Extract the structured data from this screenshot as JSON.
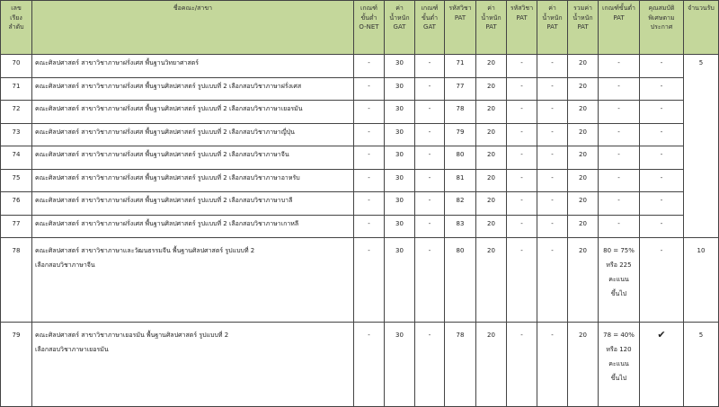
{
  "headers": [
    "เลขเรียงลำดับ",
    "ชื่อคณะ/สาขา",
    "เกณฑ์ขั้นต่ำ O-NET",
    "ค่าน้ำหนัก GAT",
    "เกณฑ์ขั้นต่ำ GAT",
    "รหัสวิชา PAT",
    "ค่าน้ำหนัก PAT",
    "รหัสวิชา PAT",
    "ค่าน้ำหนัก PAT",
    "รวมค่าน้ำหนัก PAT",
    "เกณฑ์ขั้นต่ำ PAT",
    "คุณสมบัติพิเศษตามประกาศ",
    "จำนวนรับ"
  ],
  "header_lines": [
    [
      "เลข",
      "เรียง",
      "ลำดับ"
    ],
    [
      "ชื่อคณะ/สาขา"
    ],
    [
      "เกณฑ์",
      "ขั้นต่ำ",
      "O-NET"
    ],
    [
      "ค่า",
      "น้ำหนัก",
      "GAT"
    ],
    [
      "เกณฑ์",
      "ขั้นต่ำ",
      "GAT"
    ],
    [
      "รหัสวิชา",
      "PAT"
    ],
    [
      "ค่า",
      "น้ำหนัก",
      "PAT"
    ],
    [
      "รหัสวิชา",
      "PAT"
    ],
    [
      "ค่า",
      "น้ำหนัก",
      "PAT"
    ],
    [
      "รวมค่า",
      "น้ำหนัก",
      "PAT"
    ],
    [
      "เกณฑ์ขั้นต่ำ",
      "PAT"
    ],
    [
      "คุณสมบัติ",
      "พิเศษตาม",
      "ประกาศ"
    ],
    [
      "จำนวนรับ"
    ]
  ],
  "header_color": "#c4d79b",
  "rows": [
    {
      "no": "70",
      "name": [
        "คณะศิลปศาสตร์ สาขาวิชาภาษาฝรั่งเศส พื้นฐานวิทยาศาสตร์"
      ],
      "onet": "-",
      "gat_w": "30",
      "gat_min": "-",
      "pat_code": "71",
      "pat_w": "20",
      "pat_code2": "-",
      "pat_w2": "-",
      "total": "20",
      "pat_min": [
        "-"
      ],
      "special": "-",
      "quota": "5"
    },
    {
      "no": "71",
      "name": [
        "คณะศิลปศาสตร์ สาขาวิชาภาษาฝรั่งเศส พื้นฐานศิลปศาสตร์ รูปแบบที่ 2 เลือกสอบวิชาภาษาฝรั่งเศส"
      ],
      "onet": "-",
      "gat_w": "30",
      "gat_min": "-",
      "pat_code": "77",
      "pat_w": "20",
      "pat_code2": "-",
      "pat_w2": "-",
      "total": "20",
      "pat_min": [
        "-"
      ],
      "special": "-"
    },
    {
      "no": "72",
      "name": [
        "คณะศิลปศาสตร์ สาขาวิชาภาษาฝรั่งเศส พื้นฐานศิลปศาสตร์ รูปแบบที่ 2 เลือกสอบวิชาภาษาเยอรมัน"
      ],
      "onet": "-",
      "gat_w": "30",
      "gat_min": "-",
      "pat_code": "78",
      "pat_w": "20",
      "pat_code2": "-",
      "pat_w2": "-",
      "total": "20",
      "pat_min": [
        "-"
      ],
      "special": "-"
    },
    {
      "no": "73",
      "name": [
        "คณะศิลปศาสตร์ สาขาวิชาภาษาฝรั่งเศส พื้นฐานศิลปศาสตร์ รูปแบบที่ 2 เลือกสอบวิชาภาษาญี่ปุ่น"
      ],
      "onet": "-",
      "gat_w": "30",
      "gat_min": "-",
      "pat_code": "79",
      "pat_w": "20",
      "pat_code2": "-",
      "pat_w2": "-",
      "total": "20",
      "pat_min": [
        "-"
      ],
      "special": "-"
    },
    {
      "no": "74",
      "name": [
        "คณะศิลปศาสตร์ สาขาวิชาภาษาฝรั่งเศส พื้นฐานศิลปศาสตร์ รูปแบบที่ 2 เลือกสอบวิชาภาษาจีน"
      ],
      "onet": "-",
      "gat_w": "30",
      "gat_min": "-",
      "pat_code": "80",
      "pat_w": "20",
      "pat_code2": "-",
      "pat_w2": "-",
      "total": "20",
      "pat_min": [
        "-"
      ],
      "special": "-"
    },
    {
      "no": "75",
      "name": [
        "คณะศิลปศาสตร์ สาขาวิชาภาษาฝรั่งเศส พื้นฐานศิลปศาสตร์ รูปแบบที่ 2 เลือกสอบวิชาภาษาอาหรับ"
      ],
      "onet": "-",
      "gat_w": "30",
      "gat_min": "-",
      "pat_code": "81",
      "pat_w": "20",
      "pat_code2": "-",
      "pat_w2": "-",
      "total": "20",
      "pat_min": [
        "-"
      ],
      "special": "-"
    },
    {
      "no": "76",
      "name": [
        "คณะศิลปศาสตร์ สาขาวิชาภาษาฝรั่งเศส พื้นฐานศิลปศาสตร์ รูปแบบที่ 2 เลือกสอบวิชาภาษาบาลี"
      ],
      "onet": "-",
      "gat_w": "30",
      "gat_min": "-",
      "pat_code": "82",
      "pat_w": "20",
      "pat_code2": "-",
      "pat_w2": "-",
      "total": "20",
      "pat_min": [
        "-"
      ],
      "special": "-"
    },
    {
      "no": "77",
      "name": [
        "คณะศิลปศาสตร์ สาขาวิชาภาษาฝรั่งเศส พื้นฐานศิลปศาสตร์ รูปแบบที่ 2 เลือกสอบวิชาภาษาเกาหลี"
      ],
      "onet": "-",
      "gat_w": "30",
      "gat_min": "-",
      "pat_code": "83",
      "pat_w": "20",
      "pat_code2": "-",
      "pat_w2": "-",
      "total": "20",
      "pat_min": [
        "-"
      ],
      "special": "-"
    },
    {
      "no": "78",
      "name": [
        "คณะศิลปศาสตร์ สาขาวิชาภาษาและวัฒนธรรมจีน พื้นฐานศิลปศาสตร์ รูปแบบที่ 2",
        "เลือกสอบวิชาภาษาจีน"
      ],
      "onet": "-",
      "gat_w": "30",
      "gat_min": "-",
      "pat_code": "80",
      "pat_w": "20",
      "pat_code2": "-",
      "pat_w2": "-",
      "total": "20",
      "pat_min": [
        "80 = 75%",
        "หรือ 225",
        "คะแนน",
        "ขึ้นไป"
      ],
      "special": "-",
      "quota": "10"
    },
    {
      "no": "79",
      "name": [
        "คณะศิลปศาสตร์ สาขาวิชาภาษาเยอรมัน พื้นฐานศิลปศาสตร์ รูปแบบที่ 2",
        "เลือกสอบวิชาภาษาเยอรมัน"
      ],
      "onet": "-",
      "gat_w": "30",
      "gat_min": "-",
      "pat_code": "78",
      "pat_w": "20",
      "pat_code2": "-",
      "pat_w2": "-",
      "total": "20",
      "pat_min": [
        "78 = 40%",
        "หรือ 120",
        "คะแนน",
        "ขึ้นไป"
      ],
      "special": "✔",
      "special_icon": "check-mark-icon",
      "quota": "5"
    }
  ]
}
